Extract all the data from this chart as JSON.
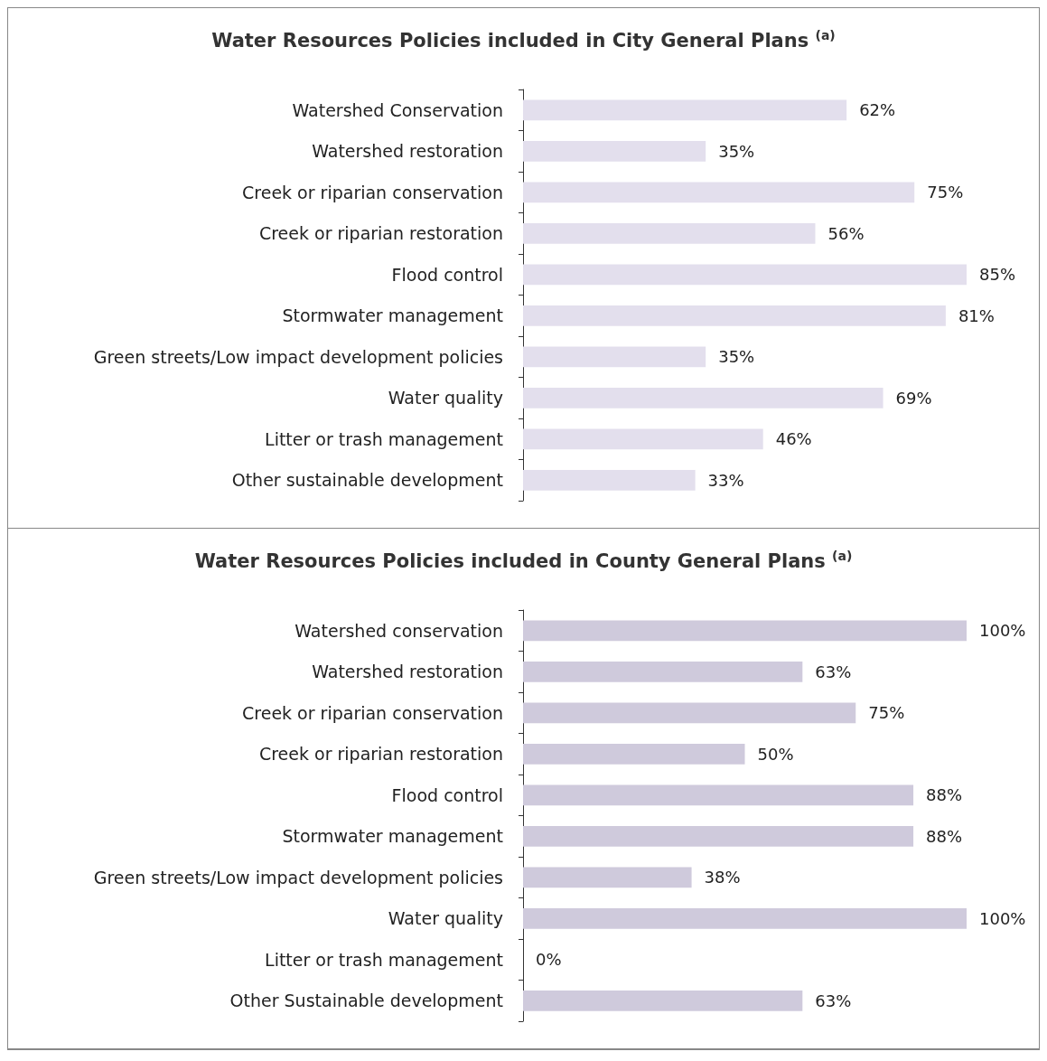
{
  "chart_data": [
    {
      "type": "bar",
      "orientation": "horizontal",
      "title": "Water Resources Policies included in City General Plans $^{(a)}$",
      "categories": [
        "Watershed Conservation",
        "Watershed restoration",
        "Creek or riparian conservation",
        "Creek or riparian restoration",
        "Flood control",
        "Stormwater management",
        "Green streets/Low impact development policies",
        "Water quality",
        "Litter or trash management",
        "Other sustainable development"
      ],
      "values": [
        62,
        35,
        75,
        56,
        85,
        81,
        35,
        69,
        46,
        33
      ],
      "value_labels": [
        "62%",
        "35%",
        "75%",
        "56%",
        "85%",
        "81%",
        "35%",
        "69%",
        "46%",
        "33%"
      ],
      "color": "#e3dfed",
      "tick_labels": "y"
    },
    {
      "type": "bar",
      "orientation": "horizontal",
      "title": "Water Resources Policies included in County General Plans $^{(a)}$",
      "categories": [
        "Watershed conservation",
        "Watershed restoration",
        "Creek or riparian conservation",
        "Creek or riparian restoration",
        "Flood control",
        "Stormwater management",
        "Green streets/Low impact development policies",
        "Water quality",
        "Litter or trash management",
        "Other Sustainable development"
      ],
      "values": [
        100,
        63,
        75,
        50,
        88,
        88,
        38,
        100,
        0,
        63
      ],
      "value_labels": [
        "100%",
        "63%",
        "75%",
        "50%",
        "88%",
        "88%",
        "38%",
        "100%",
        "0%",
        "63%"
      ],
      "color": "#cfcadc",
      "tick_labels": "y"
    }
  ]
}
